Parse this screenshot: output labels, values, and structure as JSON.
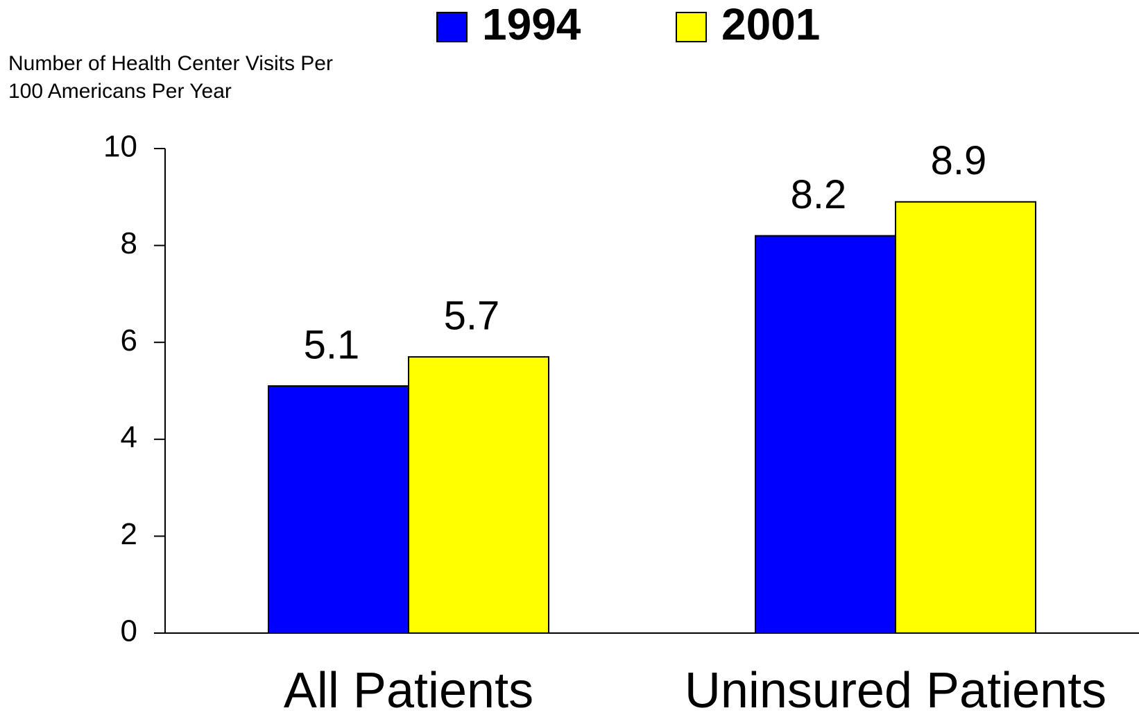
{
  "chart_data": {
    "type": "bar",
    "y_label": [
      "Number of Health Center Visits Per",
      "100 Americans Per Year"
    ],
    "categories": [
      "All Patients",
      "Uninsured Patients"
    ],
    "series": [
      {
        "name": "1994",
        "color": "#0000ff",
        "values": [
          5.1,
          8.2
        ]
      },
      {
        "name": "2001",
        "color": "#ffff00",
        "values": [
          5.7,
          8.9
        ]
      }
    ],
    "ylim": [
      0,
      10
    ],
    "yticks": [
      0,
      2,
      4,
      6,
      8,
      10
    ],
    "grid": false,
    "legend": "top"
  }
}
